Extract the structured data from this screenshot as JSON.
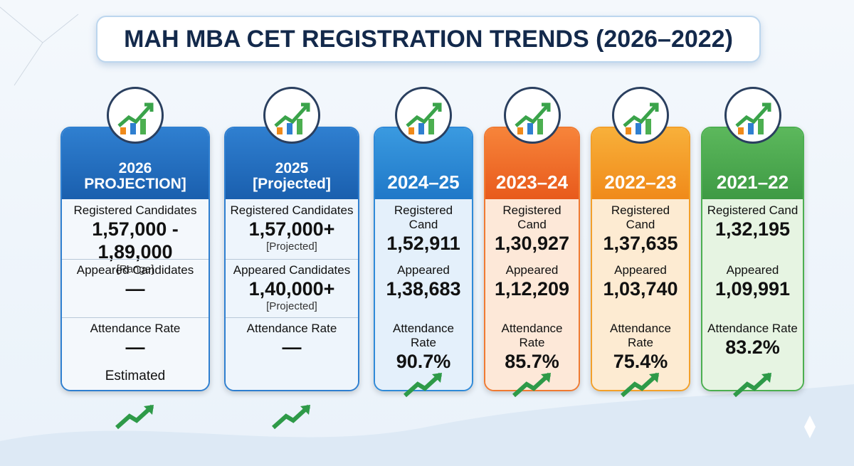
{
  "title": "MAH MBA CET REGISTRATION TRENDS (2026–2022)",
  "cards": [
    {
      "header": [
        "2026",
        "PROJECTION]"
      ],
      "rows": [
        {
          "label": "Registered Candidates",
          "value": "1,57,000 - 1,89,000",
          "note": "[Range]"
        },
        {
          "label": "Appeared Candidates",
          "value": "—"
        },
        {
          "label": "Attendance Rate",
          "value": "—"
        }
      ],
      "footer": "Estimated"
    },
    {
      "header": [
        "2025",
        "[Projected]"
      ],
      "rows": [
        {
          "label": "Registered Candidates",
          "value": "1,57,000+",
          "note": "[Projected]"
        },
        {
          "label": "Appeared Candidates",
          "value": "1,40,000+",
          "note": "[Projected]"
        },
        {
          "label": "Attendance Rate",
          "value": "—"
        }
      ]
    },
    {
      "header": [
        "2024–25"
      ],
      "rows": [
        {
          "label": "Registered Cand",
          "value": "1,52,911"
        },
        {
          "label": "Appeared",
          "value": "1,38,683"
        },
        {
          "label": "Attendance Rate",
          "value": "90.7%"
        }
      ]
    },
    {
      "header": [
        "2023–24"
      ],
      "rows": [
        {
          "label": "Registered Cand",
          "value": "1,30,927"
        },
        {
          "label": "Appeared",
          "value": "1,12,209"
        },
        {
          "label": "Attendance Rate",
          "value": "85.7%"
        }
      ]
    },
    {
      "header": [
        "2022–23"
      ],
      "rows": [
        {
          "label": "Registered Cand",
          "value": "1,37,635"
        },
        {
          "label": "Appeared",
          "value": "1,03,740"
        },
        {
          "label": "Attendance Rate",
          "value": "75.4%"
        }
      ]
    },
    {
      "header": [
        "2021–22"
      ],
      "rows": [
        {
          "label": "Registered Cand",
          "value": "1,32,195"
        },
        {
          "label": "Appeared",
          "value": "1,09,991"
        },
        {
          "label": "Attendance Rate",
          "value": "83.2%"
        }
      ]
    }
  ]
}
